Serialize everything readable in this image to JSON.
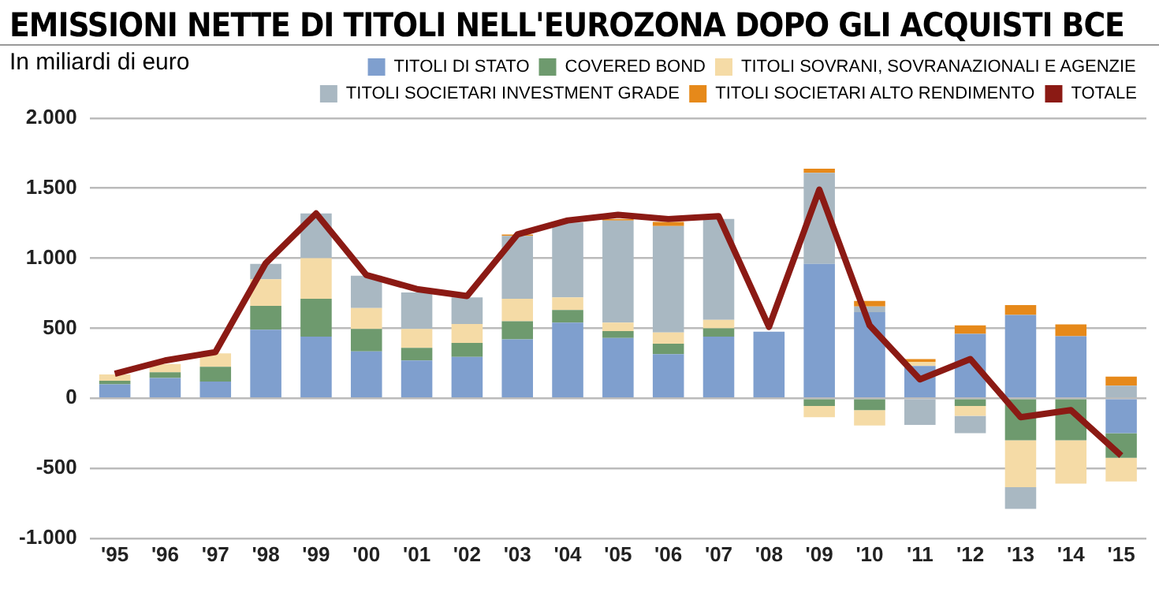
{
  "chart_data": {
    "type": "bar",
    "title": "EMISSIONI NETTE DI TITOLI NELL'EUROZONA DOPO GLI ACQUISTI BCE",
    "subtitle": "In miliardi di euro",
    "stacked": true,
    "grid": "y",
    "legend": "top right",
    "categories": [
      "'95",
      "'96",
      "'97",
      "'98",
      "'99",
      "'00",
      "'01",
      "'02",
      "'03",
      "'04",
      "'05",
      "'06",
      "'07",
      "'08",
      "'09",
      "'10",
      "'11",
      "'12",
      "'13",
      "'14",
      "'15"
    ],
    "ylim": [
      -1000,
      2000
    ],
    "yticks": [
      {
        "value": -1000,
        "label": "-1.000"
      },
      {
        "value": -500,
        "label": "-500"
      },
      {
        "value": 0,
        "label": "0"
      },
      {
        "value": 500,
        "label": "500"
      },
      {
        "value": 1000,
        "label": "1.000"
      },
      {
        "value": 1500,
        "label": "1.500"
      },
      {
        "value": 2000,
        "label": "2.000"
      }
    ],
    "series": [
      {
        "name": "TITOLI DI STATO",
        "color": "#7f9fce",
        "values": [
          100,
          145,
          120,
          490,
          440,
          335,
          270,
          295,
          420,
          540,
          430,
          315,
          440,
          475,
          960,
          615,
          230,
          460,
          595,
          443,
          -250
        ]
      },
      {
        "name": "COVERED BOND",
        "color": "#6e9a6e",
        "values": [
          25,
          40,
          105,
          170,
          270,
          160,
          90,
          100,
          130,
          90,
          50,
          75,
          60,
          null,
          -55,
          -85,
          null,
          -55,
          -300,
          -300,
          -175
        ]
      },
      {
        "name": "TITOLI SOVRANI, SOVRANAZIONALI E AGENZIE",
        "color": "#f5dba6",
        "values": [
          45,
          60,
          95,
          190,
          290,
          150,
          135,
          135,
          160,
          90,
          60,
          80,
          60,
          null,
          -80,
          -110,
          30,
          -70,
          -335,
          -310,
          -170
        ]
      },
      {
        "name": "TITOLI SOCIETARI INVESTMENT GRADE",
        "color": "#a9b8c2",
        "values": [
          null,
          null,
          null,
          110,
          320,
          230,
          260,
          190,
          450,
          535,
          730,
          760,
          720,
          null,
          650,
          40,
          -190,
          -125,
          -155,
          null,
          90
        ]
      },
      {
        "name": "TITOLI SOCIETARI ALTO RENDIMENTO",
        "color": "#e6891a",
        "values": [
          null,
          null,
          null,
          null,
          null,
          null,
          null,
          null,
          10,
          null,
          10,
          30,
          null,
          null,
          30,
          40,
          20,
          60,
          70,
          85,
          65
        ]
      },
      {
        "name": "TOTALE",
        "type": "line",
        "color": "#8b1a14",
        "marker": "none",
        "values": [
          175,
          270,
          330,
          965,
          1320,
          880,
          780,
          730,
          1170,
          1270,
          1310,
          1280,
          1300,
          510,
          1490,
          520,
          135,
          280,
          -135,
          -85,
          -410
        ]
      }
    ]
  }
}
